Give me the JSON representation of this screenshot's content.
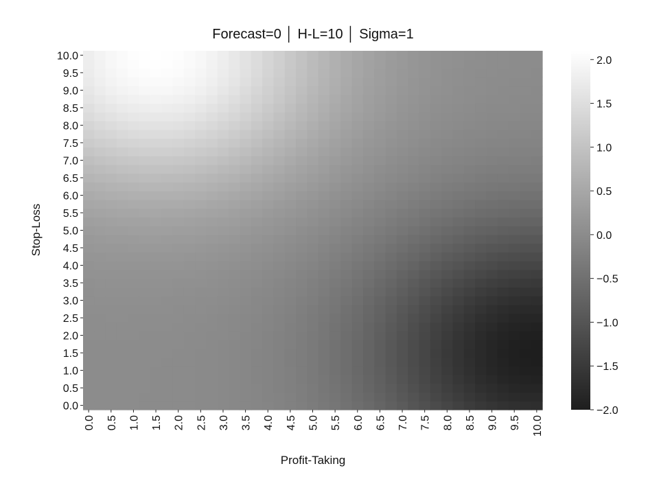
{
  "chart_data": {
    "type": "heatmap",
    "title": "Forecast=0 │ H-L=10 │ Sigma=1",
    "xlabel": "Profit-Taking",
    "ylabel": "Stop-Loss",
    "x_ticks": [
      "0.0",
      "0.5",
      "1.0",
      "1.5",
      "2.0",
      "2.5",
      "3.0",
      "3.5",
      "4.0",
      "4.5",
      "5.0",
      "5.5",
      "6.0",
      "6.5",
      "7.0",
      "7.5",
      "8.0",
      "8.5",
      "9.0",
      "9.5",
      "10.0"
    ],
    "y_ticks": [
      "0.0",
      "0.5",
      "1.0",
      "1.5",
      "2.0",
      "2.5",
      "3.0",
      "3.5",
      "4.0",
      "4.5",
      "5.0",
      "5.5",
      "6.0",
      "6.5",
      "7.0",
      "7.5",
      "8.0",
      "8.5",
      "9.0",
      "9.5",
      "10.0"
    ],
    "x_range": [
      0,
      10
    ],
    "y_range": [
      0,
      10
    ],
    "grid": false,
    "colormap": "gray",
    "color_low": "#1e1e1e",
    "color_high": "#ffffff",
    "colorbar": {
      "min": -2.0,
      "max": 2.1,
      "ticks": [
        "2.0",
        "1.5",
        "1.0",
        "0.5",
        "0.0",
        "−0.5",
        "−1.0",
        "−1.5",
        "−2.0"
      ],
      "tick_values": [
        2.0,
        1.5,
        1.0,
        0.5,
        0.0,
        -0.5,
        -1.0,
        -1.5,
        -2.0
      ]
    },
    "value_anchors": {
      "peak": {
        "profit_taking": 1.5,
        "stop_loss": 10.0,
        "value": 2.1
      },
      "trough": {
        "profit_taking": 10.0,
        "stop_loss": 1.5,
        "value": -2.0
      },
      "origin": {
        "profit_taking": 0.0,
        "stop_loss": 0.0,
        "value": 0.0
      },
      "far_corner": {
        "profit_taking": 10.0,
        "stop_loss": 10.0,
        "value": 0.0
      }
    }
  }
}
